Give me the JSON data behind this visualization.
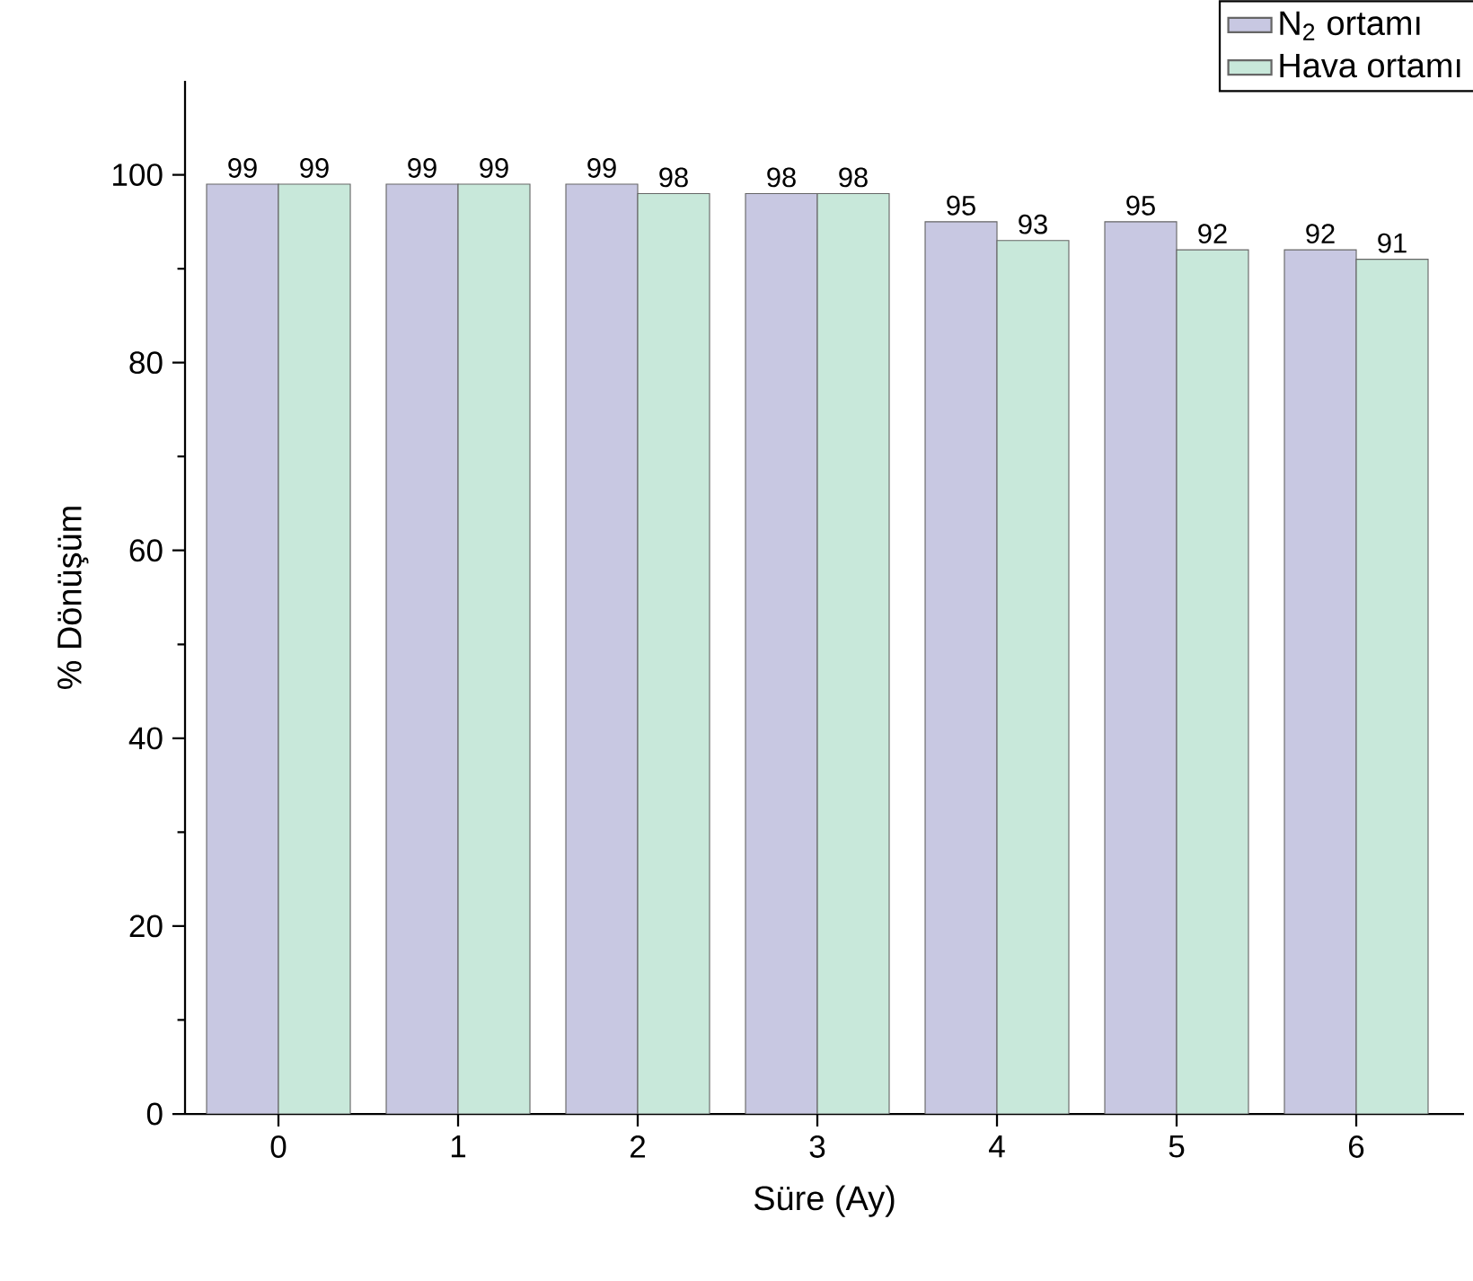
{
  "chart_data": {
    "type": "bar",
    "xlabel": "Süre (Ay)",
    "ylabel": "% Dönüşüm",
    "categories": [
      "0",
      "1",
      "2",
      "3",
      "4",
      "5",
      "6"
    ],
    "series": [
      {
        "name": "N$_{2}$ ortamı",
        "color": "#c8c8e2",
        "values": [
          99,
          99,
          99,
          98,
          95,
          95,
          92
        ]
      },
      {
        "name": "Hava ortamı",
        "color": "#c8e8da",
        "values": [
          99,
          99,
          98,
          98,
          93,
          92,
          91
        ]
      }
    ],
    "ylim": [
      0,
      110
    ],
    "yticks": [
      0,
      20,
      40,
      60,
      80,
      100
    ],
    "data_labels": true,
    "legend": "top right",
    "grid": false
  }
}
